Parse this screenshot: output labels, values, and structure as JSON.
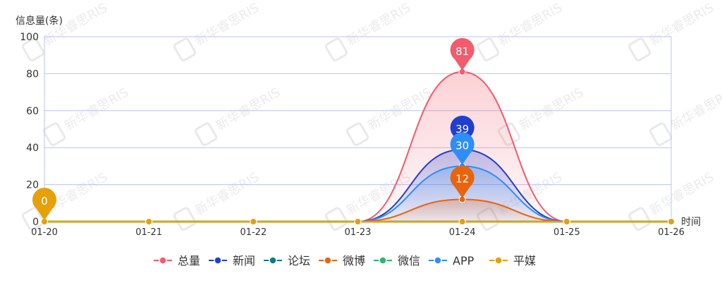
{
  "watermark": "新华睿思RIS",
  "chart_data": {
    "type": "area",
    "ylabel": "信息量(条)",
    "xlabel": "时间",
    "categories": [
      "01-20",
      "01-21",
      "01-22",
      "01-23",
      "01-24",
      "01-25",
      "01-26"
    ],
    "ylim": [
      0,
      100
    ],
    "yticks": [
      0,
      20,
      40,
      60,
      80,
      100
    ],
    "grid": true,
    "smooth": true,
    "legend_position": "bottom",
    "series": [
      {
        "name": "总量",
        "color": "#f25c6c",
        "values": [
          0,
          0,
          0,
          0,
          81,
          0,
          0
        ],
        "area": true,
        "pin_index": 4
      },
      {
        "name": "新闻",
        "color": "#1f3fcf",
        "values": [
          0,
          0,
          0,
          0,
          39,
          0,
          0
        ],
        "area": true,
        "pin_index": 4
      },
      {
        "name": "论坛",
        "color": "#0f7a84",
        "values": [
          0,
          0,
          0,
          0,
          0,
          0,
          0
        ],
        "area": false
      },
      {
        "name": "微博",
        "color": "#e8640e",
        "values": [
          0,
          0,
          0,
          0,
          12,
          0,
          0
        ],
        "area": true,
        "pin_index": 4
      },
      {
        "name": "微信",
        "color": "#2ab86e",
        "values": [
          0,
          0,
          0,
          0,
          0,
          0,
          0
        ],
        "area": false
      },
      {
        "name": "APP",
        "color": "#2e8ef5",
        "values": [
          0,
          0,
          0,
          0,
          30,
          0,
          0
        ],
        "area": true,
        "pin_index": 4
      },
      {
        "name": "平媒",
        "color": "#e5a00a",
        "values": [
          0,
          0,
          0,
          0,
          0,
          0,
          0
        ],
        "area": false,
        "pin_index": 0
      }
    ],
    "annotations": [
      {
        "series": "总量",
        "x": "01-24",
        "value": 81
      },
      {
        "series": "新闻",
        "x": "01-24",
        "value": 39
      },
      {
        "series": "APP",
        "x": "01-24",
        "value": 30
      },
      {
        "series": "微博",
        "x": "01-24",
        "value": 12
      },
      {
        "series": "平媒",
        "x": "01-20",
        "value": 0
      }
    ]
  }
}
